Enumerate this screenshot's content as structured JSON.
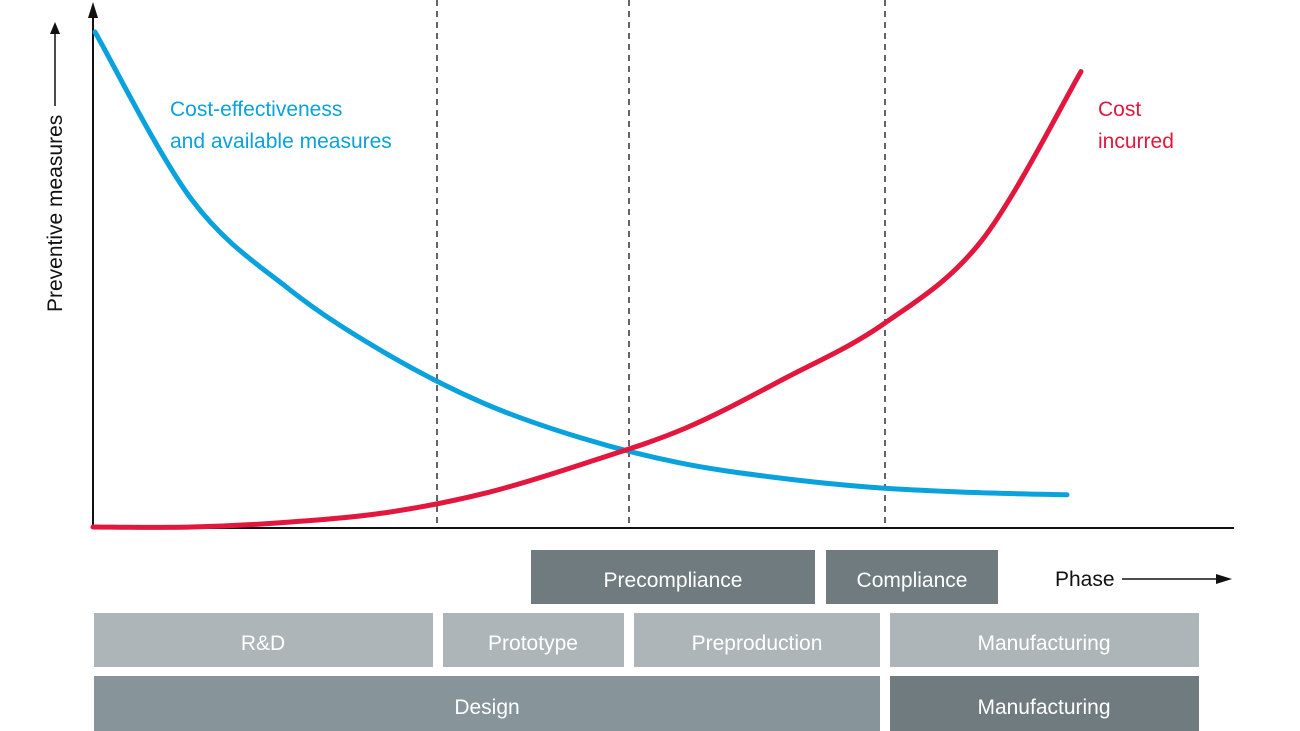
{
  "colors": {
    "blue": "#0aa2dd",
    "red": "#e3173d",
    "bar_light": "#aeb5b9",
    "bar_mid": "#87959b",
    "bar_dark": "#6f7b7e"
  },
  "chart_data": {
    "type": "line",
    "ylabel": "Preventive measures",
    "xlabel": "Phase",
    "y_ticks_shown": false,
    "series": [
      {
        "name": "Cost-effectiveness and available measures",
        "label_lines": [
          "Cost-effectiveness",
          "and available measures"
        ],
        "color": "#0aa2dd",
        "shape": "decreasing",
        "x": [
          0,
          0.1,
          0.2,
          0.3,
          0.4,
          0.5,
          0.6,
          0.7,
          0.8,
          0.9,
          1.0
        ],
        "y": [
          1.0,
          0.66,
          0.48,
          0.35,
          0.25,
          0.18,
          0.13,
          0.1,
          0.08,
          0.07,
          0.065
        ]
      },
      {
        "name": "Cost incurred",
        "label_lines": [
          "Cost",
          "incurred"
        ],
        "color": "#e3173d",
        "shape": "increasing",
        "x": [
          0,
          0.1,
          0.2,
          0.3,
          0.4,
          0.5,
          0.6,
          0.7,
          0.8,
          0.9,
          1.0
        ],
        "y": [
          0.0,
          0.0,
          0.01,
          0.03,
          0.07,
          0.13,
          0.2,
          0.3,
          0.41,
          0.58,
          0.92
        ]
      }
    ],
    "phase_bars": {
      "row1": [
        {
          "label": "Precompliance",
          "start": "Preproduction",
          "end": "Preproduction"
        },
        {
          "label": "Compliance",
          "start": "Manufacturing",
          "end": "Manufacturing"
        }
      ],
      "row2": [
        "R&D",
        "Prototype",
        "Preproduction",
        "Manufacturing"
      ],
      "row3": [
        "Design",
        "Manufacturing"
      ]
    }
  }
}
